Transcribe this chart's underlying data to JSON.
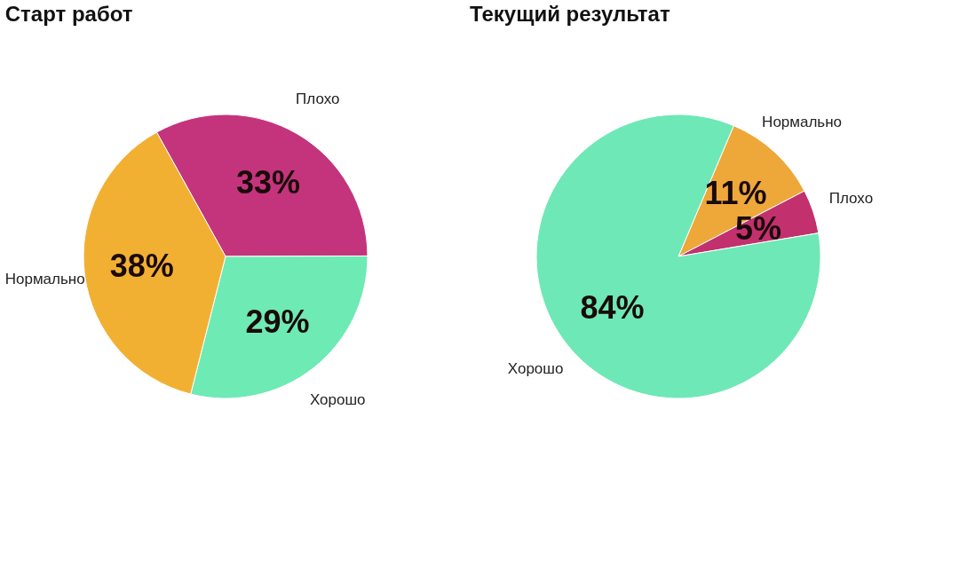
{
  "chart_data": [
    {
      "type": "pie",
      "title": "Старт работ",
      "categories": [
        "Плохо",
        "Хорошо",
        "Нормально"
      ],
      "values": [
        33,
        29,
        38
      ],
      "colors": [
        "#c4347c",
        "#6eeab4",
        "#f2b032"
      ],
      "value_labels": [
        "33%",
        "29%",
        "38%"
      ],
      "legend": false
    },
    {
      "type": "pie",
      "title": "Текущий результат",
      "categories": [
        "Нормально",
        "Плохо",
        "Хорошо"
      ],
      "values": [
        11,
        5,
        84
      ],
      "colors": [
        "#eea83a",
        "#c2306e",
        "#6ee8b6"
      ],
      "value_labels": [
        "11%",
        "5%",
        "84%"
      ],
      "legend": false
    }
  ]
}
